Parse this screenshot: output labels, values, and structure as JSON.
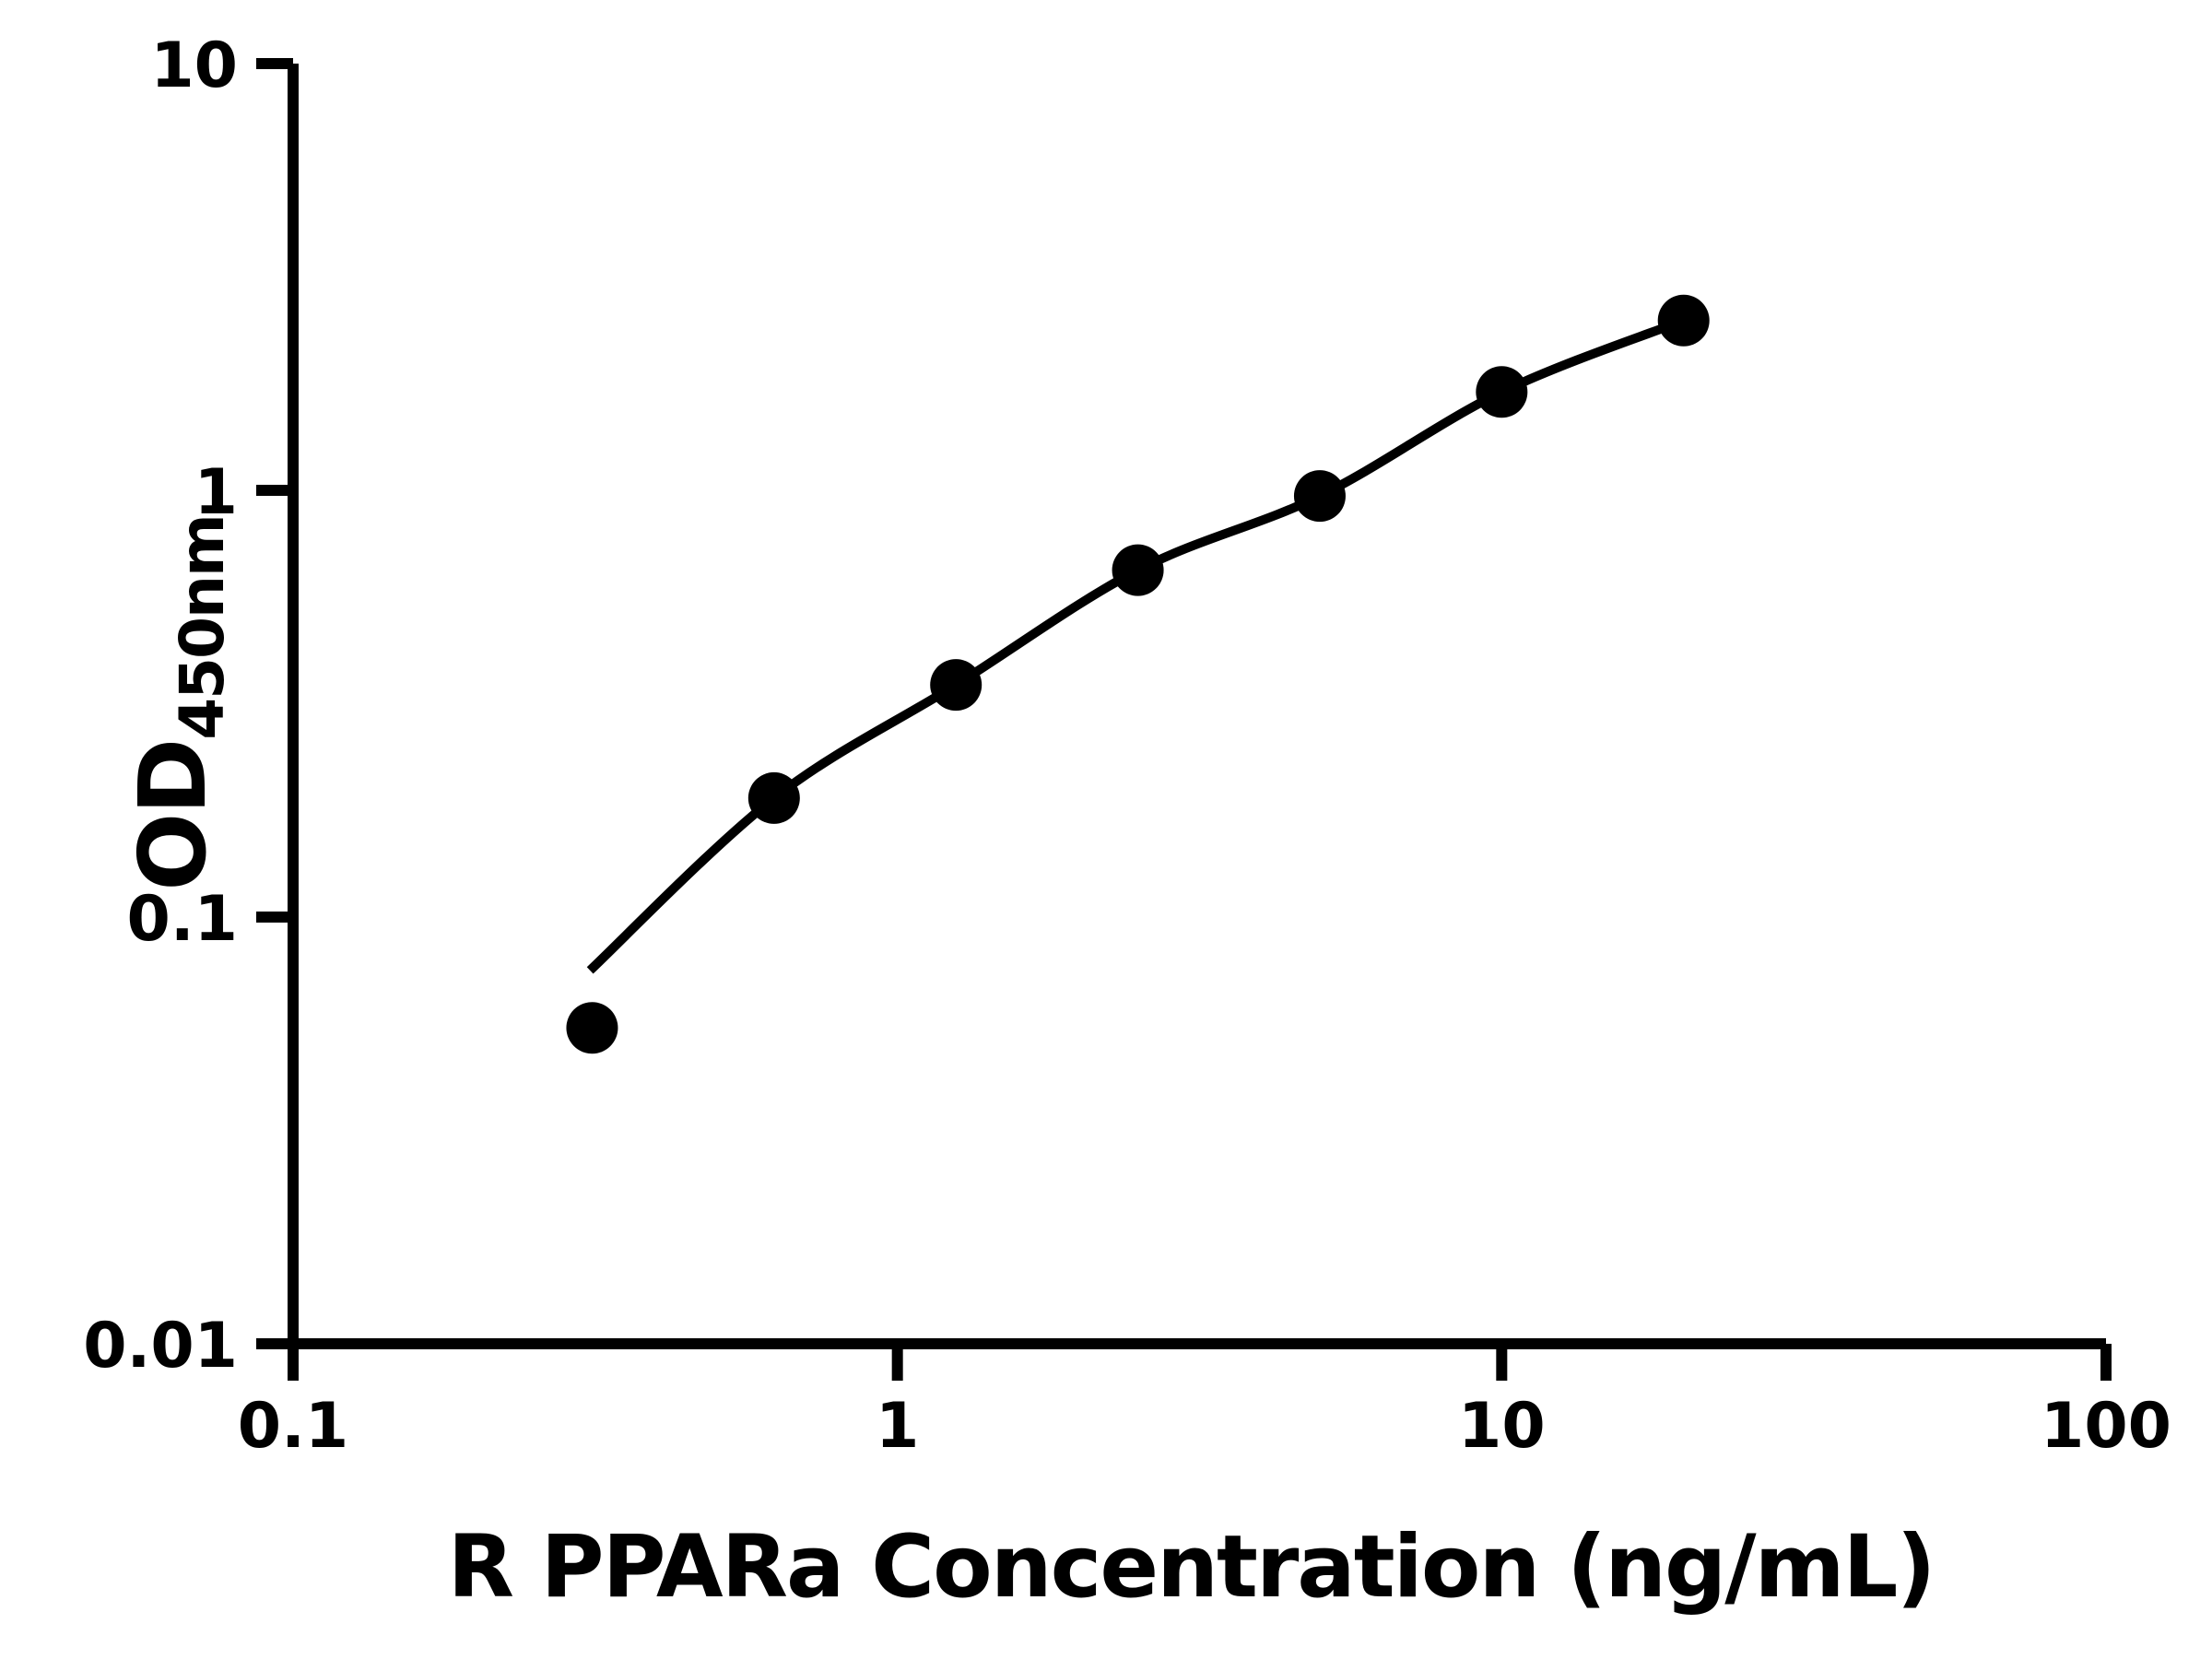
{
  "figure": {
    "background_color": "#ffffff",
    "foreground_color": "#000000"
  },
  "chart_data": {
    "type": "scatter",
    "title": "",
    "xlabel": "R PPARa Concentration (ng/mL)",
    "ylabel_main": "OD",
    "ylabel_sub": "450nm",
    "x_scale": "log",
    "y_scale": "log",
    "xlim": [
      0.1,
      100
    ],
    "ylim": [
      0.01,
      10
    ],
    "grid": false,
    "legend": "none",
    "x_ticks": [
      {
        "value": 0.1,
        "label": "0.1"
      },
      {
        "value": 1,
        "label": "1"
      },
      {
        "value": 10,
        "label": "10"
      },
      {
        "value": 100,
        "label": "100"
      }
    ],
    "y_ticks": [
      {
        "value": 10,
        "label": "10"
      },
      {
        "value": 1,
        "label": "1"
      },
      {
        "value": 0.1,
        "label": "0.1"
      },
      {
        "value": 0.01,
        "label": "0.01"
      }
    ],
    "series": [
      {
        "name": "standard-curve-points",
        "marker": "filled-circle",
        "color": "#000000",
        "points": [
          {
            "x": 0.3125,
            "y": 0.055
          },
          {
            "x": 0.625,
            "y": 0.19
          },
          {
            "x": 1.25,
            "y": 0.35
          },
          {
            "x": 2.5,
            "y": 0.65
          },
          {
            "x": 5,
            "y": 0.97
          },
          {
            "x": 10,
            "y": 1.7
          },
          {
            "x": 20,
            "y": 2.5
          }
        ]
      }
    ],
    "fit_curve": {
      "name": "4pl-fit-line",
      "color": "#000000",
      "anchors": [
        [
          0.31,
          0.075
        ],
        [
          0.625,
          0.19
        ],
        [
          1.25,
          0.35
        ],
        [
          2.5,
          0.65
        ],
        [
          5,
          0.97
        ],
        [
          10,
          1.7
        ],
        [
          20,
          2.5
        ]
      ]
    }
  }
}
